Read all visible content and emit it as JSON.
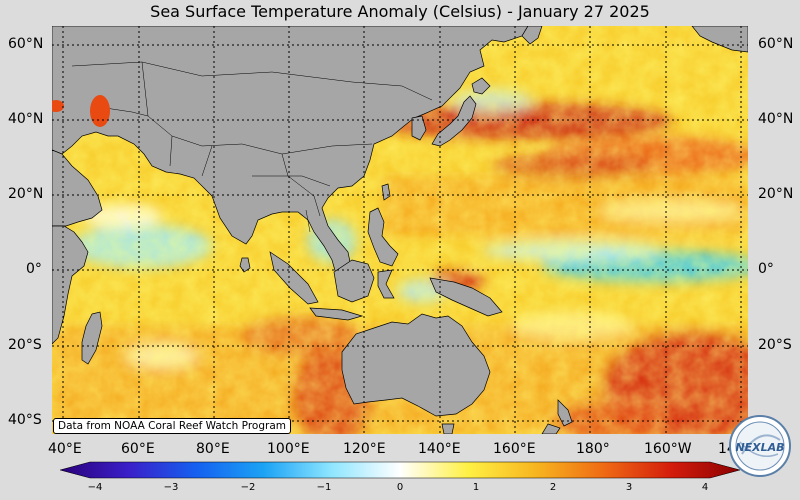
{
  "title": "Sea Surface Temperature Anomaly (Celsius) - January 27 2025",
  "lat_labels": [
    "60°N",
    "40°N",
    "20°N",
    "0°",
    "20°S",
    "40°S"
  ],
  "lon_labels": [
    "40°E",
    "60°E",
    "80°E",
    "100°E",
    "120°E",
    "140°E",
    "160°E",
    "180°",
    "160°W",
    "14"
  ],
  "credit": "Data from NOAA Coral Reef Watch Program",
  "colorbar": {
    "ticks": [
      "−4",
      "−3",
      "−2",
      "−1",
      "0",
      "1",
      "2",
      "3",
      "4"
    ],
    "min": -4,
    "max": 4
  },
  "logo_text": "NEXLAB",
  "colors": {
    "land": "#a6a6a6",
    "ocean_warm": "#f6b21f",
    "ocean_hot": "#d21b0b",
    "ocean_cool": "#8fe6ff"
  }
}
